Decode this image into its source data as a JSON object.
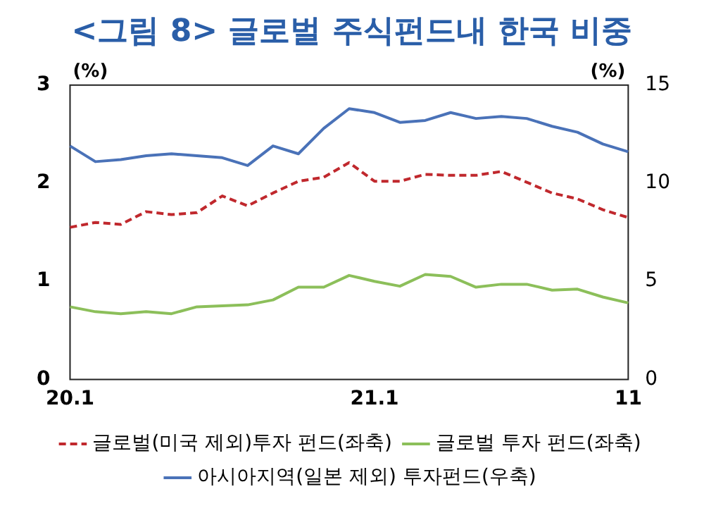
{
  "chart_data": {
    "type": "line",
    "title": "<그림 8> 글로벌 주식펀드내 한국 비중",
    "categories": [
      "20.1",
      null,
      null,
      null,
      null,
      null,
      null,
      null,
      null,
      null,
      null,
      null,
      "21.1",
      null,
      null,
      null,
      null,
      null,
      null,
      null,
      null,
      null,
      "11"
    ],
    "ylabel": "(%)",
    "y2label": "(%)",
    "ylim": [
      0,
      3
    ],
    "yticks": [
      0,
      1,
      2,
      3
    ],
    "y2lim": [
      0,
      15
    ],
    "y2ticks": [
      0,
      5,
      10,
      15
    ],
    "grid": false,
    "legend": "bottom",
    "marker": "none",
    "series": [
      {
        "name": "글로벌(미국 제외)투자 펀드(좌축)",
        "color": "#c0282d",
        "line_style": "dashed",
        "values": [
          1.55,
          1.6,
          1.58,
          1.71,
          1.68,
          1.7,
          1.87,
          1.77,
          1.9,
          2.02,
          2.06,
          2.21,
          2.02,
          2.02,
          2.09,
          2.08,
          2.08,
          2.12,
          2.01,
          1.9,
          1.84,
          1.73,
          1.65
        ]
      },
      {
        "name": "글로벌 투자 펀드(좌축)",
        "color": "#8cbf5a",
        "line_style": "solid",
        "values": [
          0.74,
          0.69,
          0.67,
          0.69,
          0.67,
          0.74,
          0.75,
          0.76,
          0.81,
          0.94,
          0.94,
          1.06,
          1.0,
          0.95,
          1.07,
          1.05,
          0.94,
          0.97,
          0.97,
          0.91,
          0.92,
          0.84,
          0.78
        ]
      },
      {
        "name": "아시아지역(일본 제외) 투자펀드(우축)",
        "color": "#4a72b8",
        "line_style": "solid",
        "axis": "y2",
        "values": [
          11.9,
          11.1,
          11.2,
          11.4,
          11.5,
          11.4,
          11.3,
          10.9,
          11.9,
          11.5,
          12.8,
          13.8,
          13.6,
          13.1,
          13.2,
          13.6,
          13.3,
          13.4,
          13.3,
          12.9,
          12.6,
          12.0,
          11.6
        ]
      }
    ]
  }
}
